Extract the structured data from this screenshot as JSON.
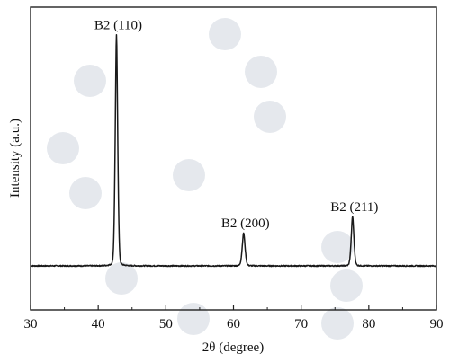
{
  "chart_data": {
    "type": "line",
    "xlabel": "2θ (degree)",
    "ylabel": "Intensity (a.u.)",
    "xlim": [
      30,
      90
    ],
    "ylim": [
      0,
      1.1
    ],
    "xticks": [
      30,
      40,
      50,
      60,
      70,
      80,
      90
    ],
    "grid": false,
    "y_tick_labels_shown": false,
    "baseline": 0.16,
    "series": [
      {
        "peaks": [
          {
            "label": "B2 (110)",
            "x": 42.7,
            "y": 1.0
          },
          {
            "label": "B2 (200)",
            "x": 61.5,
            "y": 0.28
          },
          {
            "label": "B2 (211)",
            "x": 77.6,
            "y": 0.34
          }
        ]
      }
    ],
    "colors": {
      "line": "#1a1a1a",
      "axes": "#222222"
    }
  }
}
